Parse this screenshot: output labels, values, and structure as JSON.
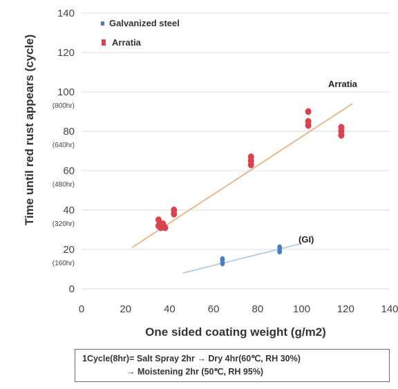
{
  "chart_data": {
    "type": "scatter",
    "xlabel": "One sided coating weight (g/m2)",
    "ylabel": "Time until red rust appears (cycle)",
    "xlim": [
      0,
      140
    ],
    "ylim": [
      0,
      140
    ],
    "x_ticks": [
      "0",
      "20",
      "40",
      "60",
      "80",
      "100",
      "120",
      "140"
    ],
    "y_ticks": [
      "0",
      "20",
      "40",
      "60",
      "80",
      "100",
      "120",
      "140"
    ],
    "y_tick_hours": {
      "20": "(160hr)",
      "40": "(320hr)",
      "60": "(480hr)",
      "80": "(640hr)",
      "100": "(800hr)"
    },
    "grid": "horizontal",
    "legend_placement": "top-left",
    "series": [
      {
        "name": "Galvanized steel",
        "color": "#4a7fbf",
        "points": [
          [
            64,
            13
          ],
          [
            64,
            15
          ],
          [
            90,
            19
          ],
          [
            90,
            21
          ]
        ],
        "trend": [
          [
            46,
            8
          ],
          [
            100,
            23
          ]
        ],
        "trend_color": "#b7cde3",
        "annotation": "(GI)"
      },
      {
        "name": "Arratia",
        "color": "#d9424f",
        "points": [
          [
            35,
            35
          ],
          [
            35,
            32
          ],
          [
            36,
            31
          ],
          [
            37,
            33
          ],
          [
            38,
            31
          ],
          [
            42,
            38
          ],
          [
            42,
            40
          ],
          [
            77,
            63
          ],
          [
            77,
            65
          ],
          [
            77,
            67
          ],
          [
            103,
            90
          ],
          [
            103,
            85
          ],
          [
            103,
            83
          ],
          [
            118,
            82
          ],
          [
            118,
            80
          ],
          [
            118,
            78
          ]
        ],
        "trend": [
          [
            23,
            21
          ],
          [
            123,
            94
          ]
        ],
        "trend_color": "#e8b98c",
        "annotation": "Arratia"
      }
    ],
    "footnote": {
      "line1": "1Cycle(8hr)= Salt Spray 2hr → Dry 4hr(60℃, RH 30%)",
      "line2": "→ Moistening 2hr (50℃, RH 95%)"
    }
  }
}
